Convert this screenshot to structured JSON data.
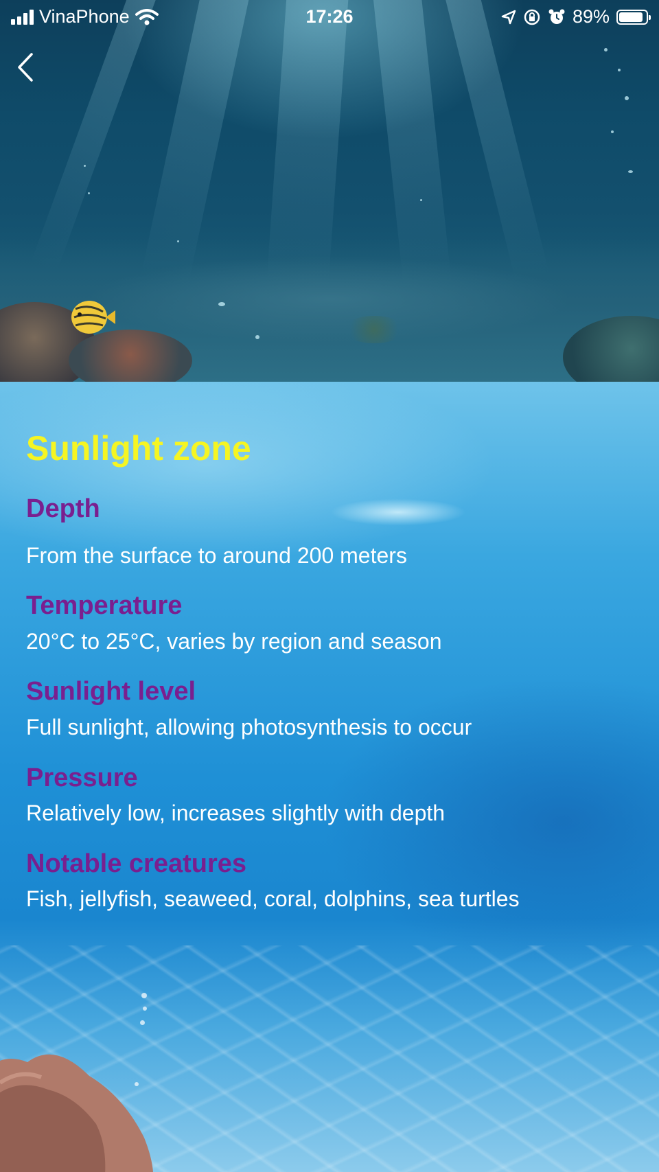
{
  "status_bar": {
    "carrier": "VinaPhone",
    "time": "17:26",
    "battery_percent": "89%",
    "battery_level": 0.89,
    "icons": [
      "signal-icon",
      "wifi-icon",
      "location-icon",
      "orientation-lock-icon",
      "alarm-icon",
      "battery-icon"
    ]
  },
  "navigation": {
    "back_icon": "chevron-left-icon"
  },
  "zone": {
    "title": "Sunlight zone",
    "sections": [
      {
        "heading": "Depth",
        "value": "From the surface to around 200 meters"
      },
      {
        "heading": "Temperature",
        "value": "20°C to 25°C, varies by region and season"
      },
      {
        "heading": "Sunlight level",
        "value": "Full sunlight, allowing photosynthesis to occur"
      },
      {
        "heading": "Pressure",
        "value": "Relatively low, increases slightly with depth"
      },
      {
        "heading": "Notable creatures",
        "value": "Fish, jellyfish, seaweed, coral, dolphins, sea turtles"
      }
    ]
  },
  "colors": {
    "title": "#f5f523",
    "heading": "#7a1f8f",
    "body_text": "#ffffff"
  }
}
